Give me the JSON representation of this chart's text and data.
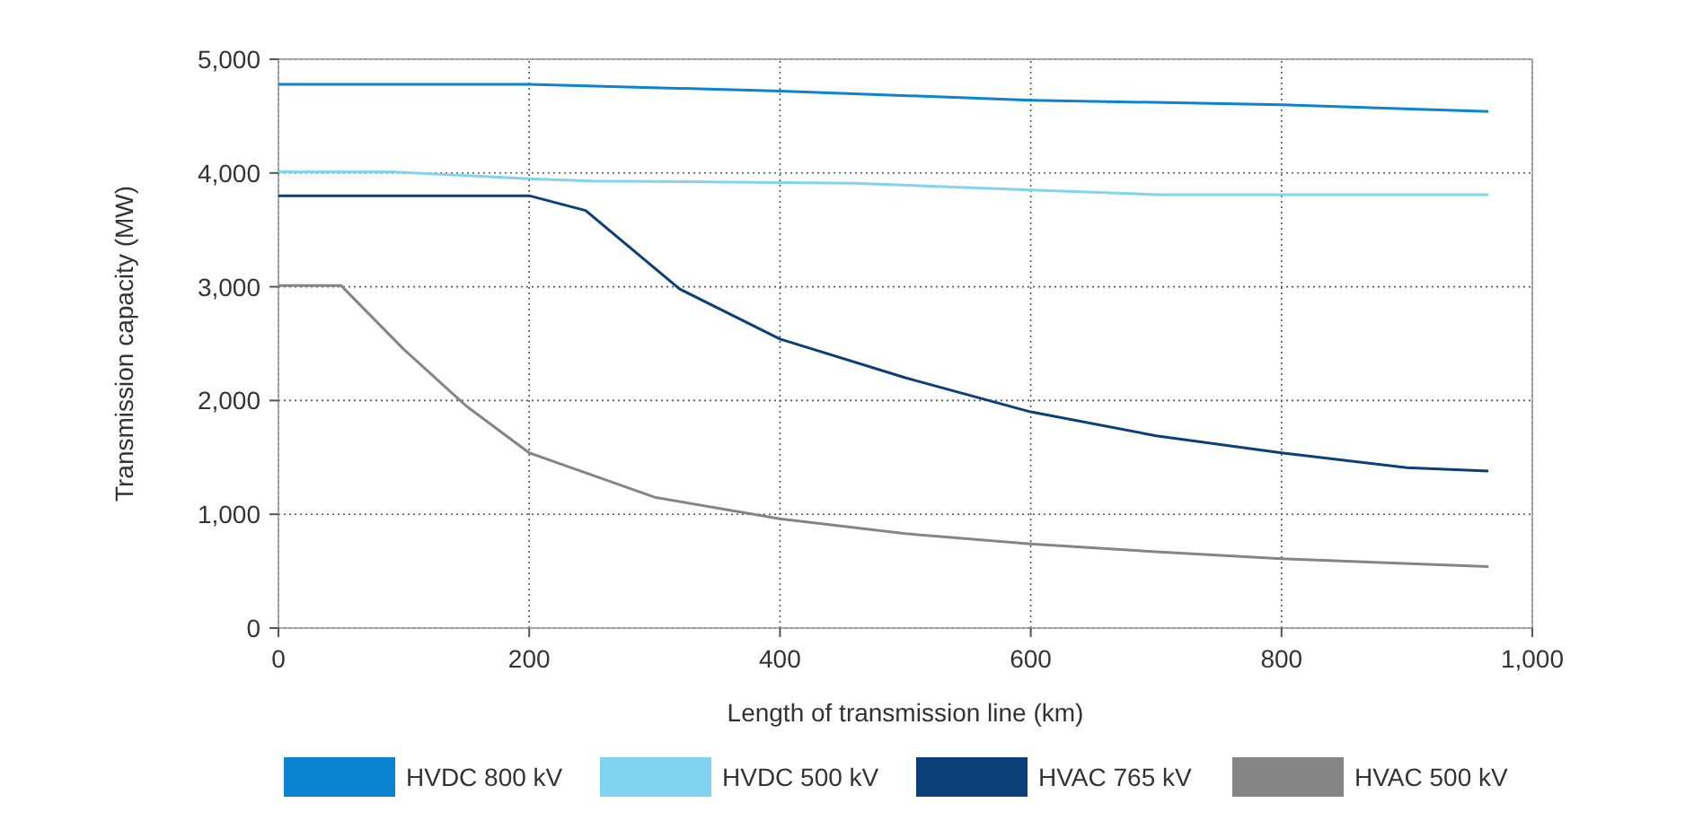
{
  "chart_data": {
    "type": "line",
    "xlabel": "Length of transmission line (km)",
    "ylabel": "Transmission capacity (MW)",
    "xlim": [
      0,
      1000
    ],
    "ylim": [
      0,
      5000
    ],
    "xticks": [
      0,
      200,
      400,
      600,
      800,
      {
        "value": 1000,
        "label": "1,000"
      }
    ],
    "yticks": [
      0,
      {
        "value": 1000,
        "label": "1,000"
      },
      {
        "value": 2000,
        "label": "2,000"
      },
      {
        "value": 3000,
        "label": "3,000"
      },
      {
        "value": 4000,
        "label": "4,000"
      },
      {
        "value": 5000,
        "label": "5,000"
      }
    ],
    "grid": true,
    "legend": "bottom",
    "marker": "none",
    "line_style": "solid",
    "series": [
      {
        "name": "HVDC 800 kV",
        "color": "#0a84d0",
        "x": [
          0,
          200,
          400,
          600,
          800,
          965
        ],
        "values": [
          4780,
          4780,
          4720,
          4640,
          4600,
          4540
        ]
      },
      {
        "name": "HVDC 500 kV",
        "color": "#80d4f0",
        "x": [
          0,
          90,
          200,
          250,
          460,
          600,
          700,
          965
        ],
        "values": [
          4010,
          4010,
          3950,
          3930,
          3910,
          3850,
          3810,
          3810
        ]
      },
      {
        "name": "HVAC 765 kV",
        "color": "#0b3f7a",
        "x": [
          0,
          200,
          245,
          320,
          400,
          500,
          600,
          700,
          800,
          900,
          965
        ],
        "values": [
          3800,
          3800,
          3670,
          2980,
          2540,
          2200,
          1900,
          1690,
          1540,
          1410,
          1380
        ]
      },
      {
        "name": "HVAC 500 kV",
        "color": "#858585",
        "x": [
          0,
          50,
          100,
          150,
          200,
          300,
          400,
          500,
          600,
          700,
          800,
          965
        ],
        "values": [
          3010,
          3010,
          2450,
          1950,
          1540,
          1150,
          960,
          830,
          740,
          670,
          610,
          540
        ]
      }
    ]
  }
}
